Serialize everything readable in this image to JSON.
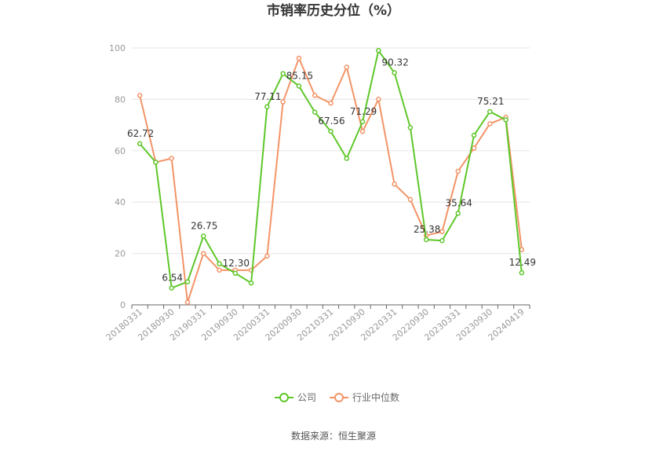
{
  "chart_data": {
    "type": "line",
    "title": "市销率历史分位（%）",
    "source": "数据来源：恒生聚源",
    "ylim": [
      0,
      100
    ],
    "yticks": [
      0,
      20,
      40,
      60,
      80,
      100
    ],
    "x_tick_labels": [
      "20180331",
      "20180930",
      "20190331",
      "20190930",
      "20200331",
      "20200930",
      "20210331",
      "20210930",
      "20220331",
      "20220930",
      "20230331",
      "20230930",
      "20240419"
    ],
    "legend_position": "bottom",
    "grid": true,
    "series": [
      {
        "name": "公司",
        "color": "#5ec72a",
        "values": [
          62.72,
          55.5,
          6.54,
          9.0,
          26.75,
          16.0,
          12.3,
          8.5,
          77.11,
          90.0,
          85.15,
          75.0,
          67.56,
          57.0,
          71.29,
          99.0,
          90.32,
          69.0,
          25.38,
          25.0,
          35.64,
          66.0,
          75.21,
          72.0,
          12.49
        ],
        "labels": {
          "0": "62.72",
          "2": "6.54",
          "4": "26.75",
          "6": "12.30",
          "8": "77.11",
          "10": "85.15",
          "12": "67.56",
          "14": "71.29",
          "16": "90.32",
          "18": "25.38",
          "20": "35.64",
          "22": "75.21",
          "24": "12.49"
        }
      },
      {
        "name": "行业中位数",
        "color": "#f39467",
        "values": [
          81.5,
          55.5,
          57.0,
          1.0,
          20.0,
          13.5,
          13.5,
          13.5,
          19.0,
          79.0,
          96.0,
          81.5,
          78.5,
          92.5,
          67.5,
          80.0,
          47.0,
          41.0,
          27.0,
          28.5,
          52.0,
          61.0,
          70.5,
          73.0,
          21.5
        ]
      }
    ]
  }
}
